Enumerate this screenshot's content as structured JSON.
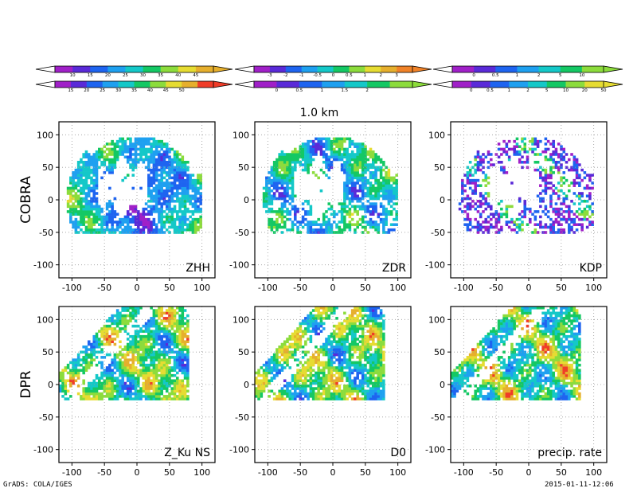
{
  "figure": {
    "title": "1.0 km",
    "row_labels": [
      "COBRA",
      "DPR"
    ],
    "footer_left": "GrADS: COLA/IGES",
    "footer_right": "2015-01-11-12:06"
  },
  "colorbars": [
    {
      "ticks": [
        "10",
        "15",
        "20",
        "25",
        "30",
        "35",
        "40",
        "45"
      ],
      "colors": [
        "#a020c8",
        "#5a2ad8",
        "#1e64f0",
        "#1ea0f0",
        "#14c8c8",
        "#14c864",
        "#8cdc3c",
        "#e6dc32",
        "#e6af2d"
      ]
    },
    {
      "ticks": [
        "-3",
        "-2",
        "-1",
        "-0.5",
        "0",
        "0.5",
        "1",
        "2",
        "3"
      ],
      "colors": [
        "#a020c8",
        "#5a2ad8",
        "#1e64f0",
        "#1ea0f0",
        "#14c8c8",
        "#14c864",
        "#8cdc3c",
        "#e6dc32",
        "#e6af2d",
        "#f08228"
      ]
    },
    {
      "ticks": [
        "0",
        "0.5",
        "1",
        "2",
        "5",
        "10"
      ],
      "colors": [
        "#a020c8",
        "#5a2ad8",
        "#1e64f0",
        "#1ea0f0",
        "#14c8c8",
        "#14c864",
        "#8cdc3c"
      ]
    },
    {
      "ticks": [
        "15",
        "20",
        "25",
        "30",
        "35",
        "40",
        "45",
        "50"
      ],
      "colors": [
        "#a020c8",
        "#5a2ad8",
        "#1e64f0",
        "#1ea0f0",
        "#14c8c8",
        "#14c864",
        "#8cdc3c",
        "#e6dc32",
        "#e6af2d",
        "#f03c28"
      ]
    },
    {
      "ticks": [
        "0",
        "0.5",
        "1",
        "1.5",
        "2"
      ],
      "colors": [
        "#a020c8",
        "#5a2ad8",
        "#1e64f0",
        "#1ea0f0",
        "#14c8c8",
        "#14c864",
        "#8cdc3c"
      ]
    },
    {
      "ticks": [
        "0",
        "0.5",
        "1",
        "2",
        "5",
        "10",
        "20",
        "50"
      ],
      "colors": [
        "#a020c8",
        "#5a2ad8",
        "#1e64f0",
        "#1ea0f0",
        "#14c8c8",
        "#14c864",
        "#8cdc3c",
        "#e6dc32"
      ]
    }
  ],
  "chart_data": [
    {
      "type": "heatmap",
      "label": "ZHH",
      "source": "COBRA",
      "xlim": [
        -120,
        120
      ],
      "ylim": [
        -120,
        120
      ],
      "xticks": [
        -100,
        -50,
        0,
        50,
        100
      ],
      "yticks": [
        -100,
        -50,
        0,
        50,
        100
      ],
      "grid": true
    },
    {
      "type": "heatmap",
      "label": "ZDR",
      "source": "COBRA",
      "xlim": [
        -120,
        120
      ],
      "ylim": [
        -120,
        120
      ],
      "xticks": [
        -100,
        -50,
        0,
        50,
        100
      ],
      "yticks": [
        -100,
        -50,
        0,
        50,
        100
      ],
      "grid": true
    },
    {
      "type": "heatmap",
      "label": "KDP",
      "source": "COBRA",
      "xlim": [
        -120,
        120
      ],
      "ylim": [
        -120,
        120
      ],
      "xticks": [
        -100,
        -50,
        0,
        50,
        100
      ],
      "yticks": [
        -100,
        -50,
        0,
        50,
        100
      ],
      "grid": true
    },
    {
      "type": "heatmap",
      "label": "Z_Ku NS",
      "source": "DPR",
      "xlim": [
        -120,
        120
      ],
      "ylim": [
        -120,
        120
      ],
      "xticks": [
        -100,
        -50,
        0,
        50,
        100
      ],
      "yticks": [
        -100,
        -50,
        0,
        50,
        100
      ],
      "grid": true
    },
    {
      "type": "heatmap",
      "label": "D0",
      "source": "DPR",
      "xlim": [
        -120,
        120
      ],
      "ylim": [
        -120,
        120
      ],
      "xticks": [
        -100,
        -50,
        0,
        50,
        100
      ],
      "yticks": [
        -100,
        -50,
        0,
        50,
        100
      ],
      "grid": true
    },
    {
      "type": "heatmap",
      "label": "precip. rate",
      "source": "DPR",
      "xlim": [
        -120,
        120
      ],
      "ylim": [
        -120,
        120
      ],
      "xticks": [
        -100,
        -50,
        0,
        50,
        100
      ],
      "yticks": [
        -100,
        -50,
        0,
        50,
        100
      ],
      "grid": true
    }
  ]
}
